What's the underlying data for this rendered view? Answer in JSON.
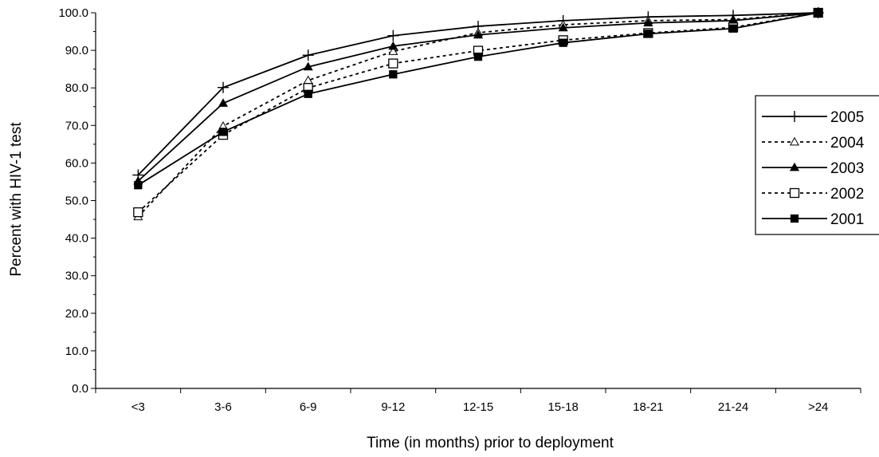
{
  "chart_data": {
    "type": "line",
    "xlabel": "Time (in months) prior to deployment",
    "ylabel": "Percent with HIV-1 test",
    "ylim": [
      0,
      100
    ],
    "yticks": [
      "0.0",
      "10.0",
      "20.0",
      "30.0",
      "40.0",
      "50.0",
      "60.0",
      "70.0",
      "80.0",
      "90.0",
      "100.0"
    ],
    "categories": [
      "<3",
      "3-6",
      "6-9",
      "9-12",
      "12-15",
      "15-18",
      "18-21",
      "21-24",
      ">24"
    ],
    "legend_position": "right",
    "grid": false,
    "series": [
      {
        "name": "2005",
        "line": "solid",
        "marker": "plus",
        "values": [
          56.8,
          80.1,
          88.7,
          93.9,
          96.4,
          97.9,
          98.9,
          99.3,
          100.0
        ]
      },
      {
        "name": "2004",
        "line": "dashed",
        "marker": "triangle-open",
        "values": [
          45.7,
          69.8,
          82.0,
          89.7,
          94.7,
          96.8,
          97.9,
          98.2,
          100.0
        ]
      },
      {
        "name": "2003",
        "line": "solid",
        "marker": "triangle-filled",
        "values": [
          55.2,
          75.9,
          85.6,
          91.1,
          94.1,
          96.0,
          97.3,
          97.9,
          100.0
        ]
      },
      {
        "name": "2002",
        "line": "dashed",
        "marker": "square-open",
        "values": [
          46.9,
          67.5,
          80.0,
          86.5,
          89.9,
          92.7,
          94.6,
          96.1,
          100.0
        ]
      },
      {
        "name": "2001",
        "line": "solid",
        "marker": "square-filled",
        "values": [
          54.1,
          68.3,
          78.4,
          83.6,
          88.3,
          92.0,
          94.4,
          95.8,
          100.0
        ]
      }
    ]
  }
}
